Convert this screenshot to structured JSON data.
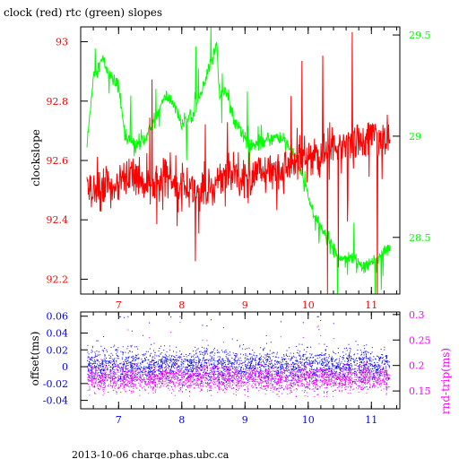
{
  "title": "clock (red) rtc (green) slopes",
  "footer": "2013-10-06 charge.phas.ubc.ca",
  "chart_data": [
    {
      "type": "line",
      "title": "clock (red) rtc (green) slopes",
      "xlabel": "",
      "xlim": [
        6.4,
        11.45
      ],
      "x_ticks": [
        7,
        8,
        9,
        10,
        11
      ],
      "left_axis": {
        "label": "clockslope",
        "lim": [
          92.15,
          93.05
        ],
        "ticks": [
          92.2,
          92.4,
          92.6,
          92.8,
          93
        ],
        "tick_labels": [
          "92.2",
          "92.4",
          "92.6",
          "92.8",
          "93"
        ],
        "color": "#ff0000"
      },
      "right_axis": {
        "label": "",
        "lim": [
          28.22,
          29.54
        ],
        "ticks": [
          28.5,
          29,
          29.5
        ],
        "tick_labels": [
          "28.5",
          "29",
          "29.5"
        ],
        "color": "#00ff00"
      },
      "series": [
        {
          "name": "clock",
          "axis": "left",
          "color": "#ff0000",
          "x": [
            6.5,
            6.6,
            6.8,
            7.0,
            7.2,
            7.4,
            7.6,
            7.8,
            8.0,
            8.2,
            8.4,
            8.6,
            8.8,
            9.0,
            9.2,
            9.4,
            9.6,
            9.8,
            10.0,
            10.2,
            10.4,
            10.6,
            10.8,
            11.0,
            11.3
          ],
          "values": [
            92.5,
            92.48,
            92.5,
            92.53,
            92.55,
            92.53,
            92.52,
            92.55,
            92.52,
            92.5,
            92.48,
            92.55,
            92.57,
            92.55,
            92.56,
            92.55,
            92.57,
            92.6,
            92.63,
            92.6,
            92.66,
            92.67,
            92.66,
            92.68,
            92.66
          ],
          "noise": 0.1
        },
        {
          "name": "rtc",
          "axis": "right",
          "color": "#00ff00",
          "x": [
            6.5,
            6.6,
            6.75,
            6.85,
            7.0,
            7.1,
            7.3,
            7.45,
            7.6,
            7.75,
            7.9,
            8.0,
            8.15,
            8.3,
            8.45,
            8.55,
            8.6,
            8.7,
            8.8,
            8.95,
            9.1,
            9.3,
            9.5,
            9.7,
            9.8,
            9.95,
            10.1,
            10.3,
            10.5,
            10.7,
            10.9,
            11.1,
            11.3
          ],
          "values": [
            28.95,
            29.3,
            29.38,
            29.3,
            29.25,
            29.0,
            28.95,
            29.0,
            29.1,
            29.2,
            29.15,
            29.05,
            29.1,
            29.2,
            29.35,
            29.45,
            29.2,
            29.23,
            29.1,
            29.02,
            28.95,
            28.97,
            29.0,
            28.95,
            28.9,
            28.75,
            28.6,
            28.5,
            28.4,
            28.4,
            28.35,
            28.4,
            28.45
          ],
          "noise": 0.05
        }
      ]
    },
    {
      "type": "scatter",
      "title": "",
      "xlabel": "",
      "xlim": [
        6.4,
        11.45
      ],
      "x_ticks": [
        7,
        8,
        9,
        10,
        11
      ],
      "left_axis": {
        "label": "offset(ms)",
        "lim": [
          -0.05,
          0.065
        ],
        "ticks": [
          -0.04,
          -0.02,
          0,
          0.02,
          0.04,
          0.06
        ],
        "tick_labels": [
          "-0.04",
          "-0.02",
          "0",
          "0.02",
          "0.04",
          "0.06"
        ],
        "color": "#0000ff"
      },
      "right_axis": {
        "label": "rnd-trip(ms)",
        "lim": [
          0.115,
          0.305
        ],
        "ticks": [
          0.15,
          0.2,
          0.25,
          0.3
        ],
        "tick_labels": [
          "0.15",
          "0.2",
          "0.25",
          "0.3"
        ],
        "color": "#ff00ff"
      },
      "series": [
        {
          "name": "offset",
          "axis": "left",
          "color": "#0000ff",
          "center": 0.0,
          "spread": 0.025,
          "range": [
            -0.045,
            0.06
          ]
        },
        {
          "name": "rnd-trip",
          "axis": "right",
          "color": "#ff00ff",
          "center": 0.175,
          "spread": 0.03,
          "range": [
            0.14,
            0.3
          ]
        }
      ]
    }
  ]
}
